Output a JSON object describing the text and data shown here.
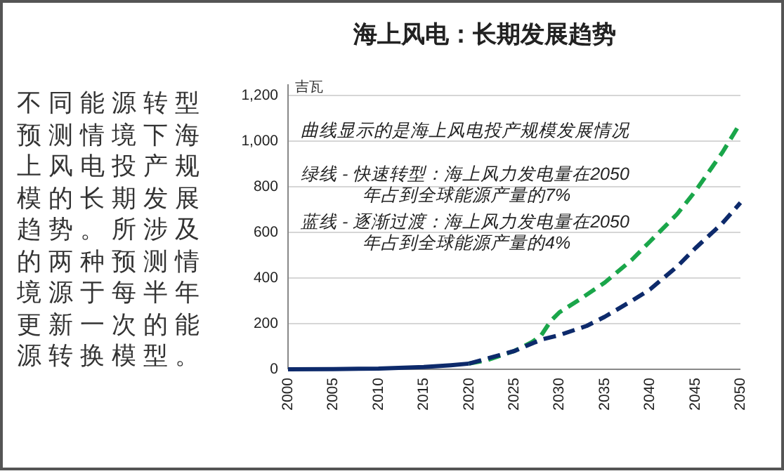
{
  "chart_data": {
    "type": "line",
    "title": "海上风电：长期发展趋势",
    "ylabel": "吉瓦",
    "annotations": [
      "不同能源转型预测情境下海上风电投产规模的长期发展趋势。所涉及的两种预测情境源于每半年更新一次的能源转换模型。",
      "曲线显示的是海上风电投产规模发展情况",
      "绿线 - 快速转型：海上风力发电量在2050年占到全球能源产量的7%",
      "蓝线 - 逐渐过渡：海上风力发电量在2050年占到全球能源产量的4%"
    ],
    "series": [
      {
        "color": "#0d2a6b",
        "line_style": "solid",
        "x": [
          2000,
          2005,
          2010,
          2015,
          2018,
          2020
        ],
        "values": [
          0,
          1,
          3,
          10,
          18,
          25
        ]
      },
      {
        "color": "#1aa64a",
        "line_style": "dashed",
        "x": [
          2020,
          2022,
          2025,
          2027,
          2028,
          2029,
          2030,
          2032,
          2035,
          2038,
          2040,
          2043,
          2045,
          2048,
          2050
        ],
        "values": [
          25,
          40,
          80,
          120,
          150,
          210,
          250,
          300,
          380,
          480,
          560,
          680,
          780,
          950,
          1080
        ]
      },
      {
        "color": "#0d2a6b",
        "line_style": "dashed",
        "x": [
          2020,
          2025,
          2028,
          2030,
          2033,
          2035,
          2038,
          2040,
          2043,
          2045,
          2048,
          2050
        ],
        "values": [
          25,
          80,
          130,
          150,
          190,
          230,
          300,
          350,
          450,
          530,
          640,
          730
        ]
      }
    ],
    "xlim": [
      2000,
      2050
    ],
    "xticks": [
      2000,
      2005,
      2010,
      2015,
      2020,
      2025,
      2030,
      2035,
      2040,
      2045,
      2050
    ],
    "ylim": [
      0,
      1200
    ],
    "yticks": [
      0,
      {
        "value": 200,
        "label": "200"
      },
      {
        "value": 400,
        "label": "400"
      },
      {
        "value": 600,
        "label": "600"
      },
      {
        "value": 800,
        "label": "800"
      },
      {
        "value": 1000,
        "label": "1,000"
      },
      {
        "value": 1200,
        "label": "1,200"
      }
    ],
    "grid": "y"
  }
}
